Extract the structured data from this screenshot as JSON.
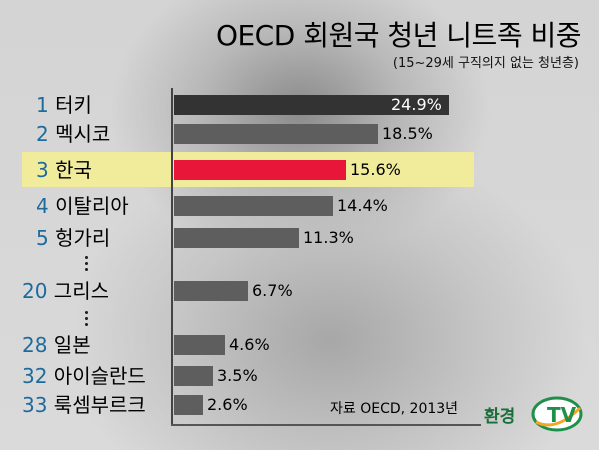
{
  "title": "OECD 회원국 청년 니트족 비중",
  "subtitle": "(15~29세 구직의지 없는 청년층)",
  "source": "자료 OECD, 2013년",
  "logo": {
    "text": "환경",
    "mark": "TV"
  },
  "colors": {
    "highlight_bar": "#e8173a",
    "top_bar": "#333333",
    "bar": "#5e5e5e",
    "highlight_row": "#f1ec9c",
    "rank": "#1d6b9c"
  },
  "chart_data": {
    "type": "bar",
    "orientation": "horizontal",
    "categories": [
      "터키",
      "멕시코",
      "한국",
      "이탈리아",
      "헝가리",
      "그리스",
      "일본",
      "아이슬란드",
      "룩셈부르크"
    ],
    "ranks": [
      "1",
      "2",
      "3",
      "4",
      "5",
      "20",
      "28",
      "32",
      "33"
    ],
    "values": [
      24.9,
      18.5,
      15.6,
      14.4,
      11.3,
      6.7,
      4.6,
      3.5,
      2.6
    ],
    "value_labels": [
      "24.9%",
      "18.5%",
      "15.6%",
      "14.4%",
      "11.3%",
      "6.7%",
      "4.6%",
      "3.5%",
      "2.6%"
    ],
    "highlight": "한국",
    "unit": "%",
    "xlim": [
      0,
      25
    ]
  }
}
